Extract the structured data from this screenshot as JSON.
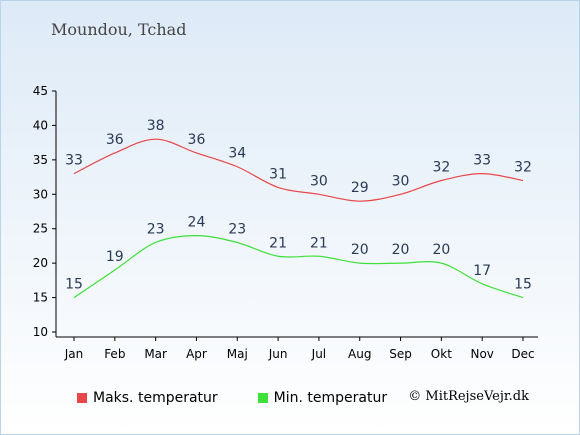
{
  "chart_data": {
    "type": "line",
    "title": "Moundou, Tchad",
    "categories": [
      "Jan",
      "Feb",
      "Mar",
      "Apr",
      "Maj",
      "Jun",
      "Jul",
      "Aug",
      "Sep",
      "Okt",
      "Nov",
      "Dec"
    ],
    "yticks": [
      10,
      15,
      20,
      25,
      30,
      35,
      40,
      45
    ],
    "ylim": [
      10,
      45
    ],
    "series": [
      {
        "name": "Maks. temperatur",
        "color": "#e8474a",
        "values": [
          33,
          36,
          38,
          36,
          34,
          31,
          30,
          29,
          30,
          32,
          33,
          32
        ]
      },
      {
        "name": "Min. temperatur",
        "color": "#3ee03a",
        "values": [
          15,
          19,
          23,
          24,
          23,
          21,
          21,
          20,
          20,
          20,
          17,
          15
        ]
      }
    ],
    "legend_position": "bottom-left",
    "grid": false
  },
  "copyright": "© MitRejseVejr.dk"
}
